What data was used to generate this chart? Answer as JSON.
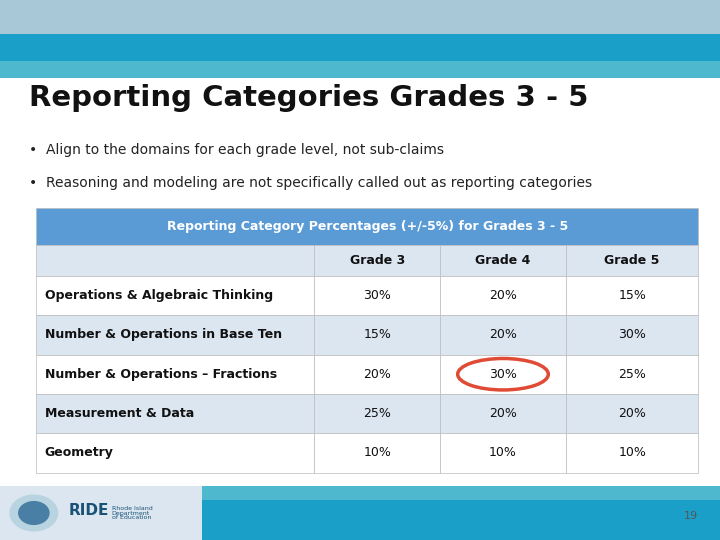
{
  "title": "Reporting Categories Grades 3 - 5",
  "bullet1": "Align to the domains for each grade level, not sub-claims",
  "bullet2": "Reasoning and modeling are not specifically called out as reporting categories",
  "table_header": "Reporting Category Percentages (+/-5%) for Grades 3 - 5",
  "col_headers": [
    "",
    "Grade 3",
    "Grade 4",
    "Grade 5"
  ],
  "rows": [
    [
      "Operations & Algebraic Thinking",
      "30%",
      "20%",
      "15%"
    ],
    [
      "Number & Operations in Base Ten",
      "15%",
      "20%",
      "30%"
    ],
    [
      "Number & Operations – Fractions",
      "20%",
      "30%",
      "25%"
    ],
    [
      "Measurement & Data",
      "25%",
      "20%",
      "20%"
    ],
    [
      "Geometry",
      "10%",
      "10%",
      "10%"
    ]
  ],
  "header_bg": "#5b9bd5",
  "header_text": "#ffffff",
  "col_header_bg": "#dce6f1",
  "row_odd_bg": "#ffffff",
  "row_even_bg": "#dce6f1",
  "top_bar1_color": "#a8c8d8",
  "top_bar2_color": "#1aa0c8",
  "top_bar3_color": "#4db8ce",
  "bottom_bar1_color": "#4db8ce",
  "bottom_bar2_color": "#1aa0c8",
  "circle_row": 2,
  "circle_col": 2,
  "circle_color": "#e04b35",
  "footer_bg": "#ffffff",
  "footer_logo_bg": "#dce6f1",
  "page_num": "19",
  "slide_bg": "#ffffff"
}
